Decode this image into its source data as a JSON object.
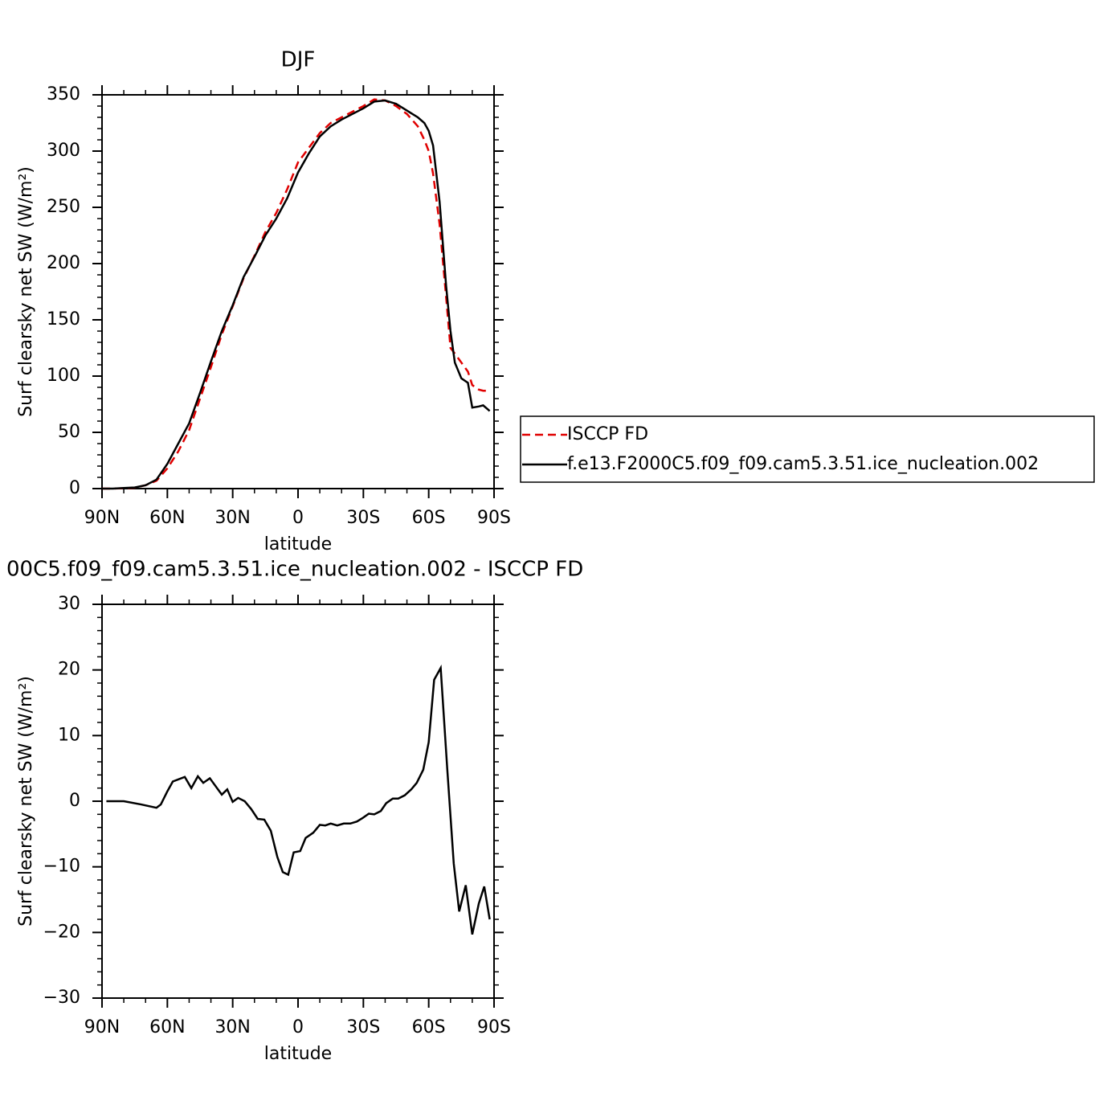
{
  "chart_data": [
    {
      "type": "line",
      "title": "DJF",
      "x_label": "latitude",
      "y_label": "Surf clearsky net SW (W/m²)",
      "x": [
        90,
        85,
        80,
        75,
        70,
        65,
        60,
        55,
        50,
        45,
        40,
        35,
        30,
        25,
        20,
        15,
        10,
        5,
        0,
        -5,
        -10,
        -15,
        -20,
        -25,
        -30,
        -35,
        -40,
        -45,
        -50,
        -55,
        -58,
        -60,
        -62,
        -65,
        -68,
        -70,
        -72,
        -75,
        -78,
        -80,
        -83,
        -85,
        -88
      ],
      "series": [
        {
          "name": "ISCCP FD",
          "color": "#e00000",
          "line_style": "dashed",
          "values": [
            0,
            0,
            0.3,
            0.8,
            3,
            7,
            18,
            33,
            52,
            80,
            108,
            137,
            162,
            187,
            207,
            228,
            245,
            266,
            290,
            303,
            316,
            325,
            330,
            335,
            340,
            346,
            345,
            340,
            333,
            322,
            310,
            300,
            280,
            235,
            170,
            125,
            120,
            112,
            104,
            92,
            88,
            87,
            87
          ]
        },
        {
          "name": "f.e13.F2000C5.f09_f09.cam5.3.51.ice_nucleation.002",
          "color": "#000000",
          "line_style": "solid",
          "values": [
            0,
            0,
            0.5,
            1,
            3,
            8,
            22,
            40,
            58,
            85,
            113,
            140,
            163,
            188,
            206,
            225,
            240,
            258,
            281,
            298,
            313,
            322,
            328,
            333,
            338,
            344,
            345,
            342,
            336,
            330,
            325,
            318,
            305,
            255,
            180,
            140,
            112,
            98,
            94,
            72,
            73,
            74,
            69
          ]
        }
      ],
      "xlim": [
        90,
        -90
      ],
      "xticks": [
        {
          "value": 90,
          "label": "90N"
        },
        {
          "value": 60,
          "label": "60N"
        },
        {
          "value": 30,
          "label": "30N"
        },
        0,
        {
          "value": -30,
          "label": "30S"
        },
        {
          "value": -60,
          "label": "60S"
        },
        {
          "value": -90,
          "label": "90S"
        }
      ],
      "ylim": [
        0,
        350
      ],
      "yticks": [
        0,
        50,
        100,
        150,
        200,
        250,
        300,
        350
      ],
      "legend": "right"
    },
    {
      "type": "line",
      "title": "00C5.f09_f09.cam5.3.51.ice_nucleation.002 - ISCCP FD",
      "x_label": "latitude",
      "y_label": "Surf clearsky net SW (W/m²)",
      "x": [
        88,
        80,
        72,
        65,
        63,
        60,
        57.5,
        52,
        49,
        46,
        43.5,
        40.5,
        35,
        32.5,
        30,
        27.5,
        24.5,
        21.5,
        18.5,
        15.5,
        12.5,
        9.5,
        7,
        4.5,
        2,
        -1,
        -3.5,
        -7,
        -10,
        -12.5,
        -15,
        -18,
        -21,
        -24,
        -27,
        -29.5,
        -32.5,
        -35,
        -38,
        -40.5,
        -43.5,
        -46,
        -49,
        -52,
        -54.5,
        -57.5,
        -60,
        -62.5,
        -65.5,
        -68.5,
        -71.5,
        -74,
        -77,
        -80,
        -83,
        -85.5,
        -88
      ],
      "series": [
        {
          "color": "#000000",
          "line_style": "solid",
          "values": [
            0,
            0,
            -0.5,
            -1,
            -0.5,
            1.5,
            3,
            3.7,
            2,
            3.8,
            2.8,
            3.5,
            1,
            1.8,
            -0.1,
            0.5,
            0,
            -1.2,
            -2.7,
            -2.8,
            -4.5,
            -8.5,
            -10.8,
            -11.2,
            -7.8,
            -7.6,
            -5.6,
            -4.8,
            -3.6,
            -3.7,
            -3.4,
            -3.7,
            -3.4,
            -3.4,
            -3.1,
            -2.6,
            -1.9,
            -2,
            -1.5,
            -0.3,
            0.4,
            0.4,
            0.9,
            1.8,
            2.8,
            4.8,
            9,
            18.5,
            20.3,
            5,
            -9.5,
            -16.8,
            -12.8,
            -20.3,
            -15.6,
            -13,
            -18
          ]
        }
      ],
      "xlim": [
        90,
        -90
      ],
      "xticks": [
        {
          "value": 90,
          "label": "90N"
        },
        {
          "value": 60,
          "label": "60N"
        },
        {
          "value": 30,
          "label": "30N"
        },
        0,
        {
          "value": -30,
          "label": "30S"
        },
        {
          "value": -60,
          "label": "60S"
        },
        {
          "value": -90,
          "label": "90S"
        }
      ],
      "ylim": [
        -30,
        30
      ],
      "yticks": [
        {
          "value": -30,
          "label": "−30"
        },
        {
          "value": -20,
          "label": "−20"
        },
        {
          "value": -10,
          "label": "−10"
        },
        0,
        10,
        20,
        30
      ]
    }
  ]
}
